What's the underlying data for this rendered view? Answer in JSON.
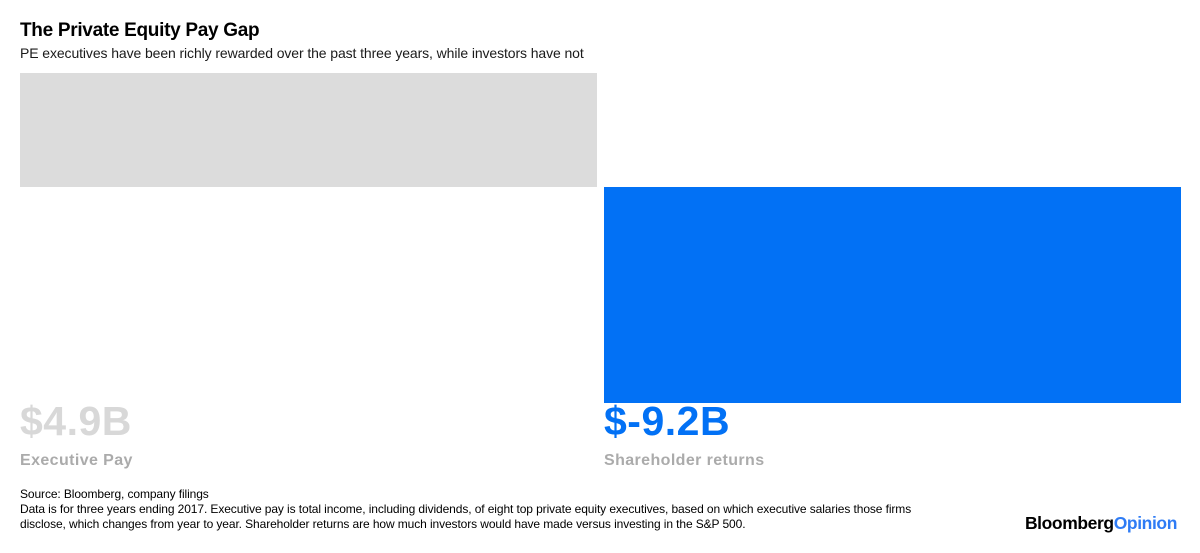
{
  "header": {
    "title": "The Private Equity Pay Gap",
    "subtitle": "PE executives have been richly rewarded over the past three years, while investors have not"
  },
  "chart_data": {
    "type": "bar",
    "variant": "waterfall",
    "title": "The Private Equity Pay Gap",
    "subtitle": "PE executives have been richly rewarded over the past three years, while investors have not",
    "categories": [
      "Executive Pay",
      "Shareholder returns"
    ],
    "values": [
      4.9,
      -9.2
    ],
    "value_labels": [
      "$4.9B",
      "$-9.2B"
    ],
    "unit": "billions of dollars",
    "bar_colors": [
      "#DCDCDC",
      "#0271F5"
    ],
    "axes": "none — values shown as direct data labels",
    "legend": "none",
    "layout": "gray positive block drops from top, blue negative block cascades below it to the right"
  },
  "bars": {
    "executive": {
      "value_label": "$4.9B",
      "category_label": "Executive Pay"
    },
    "shareholder": {
      "value_label": "$-9.2B",
      "category_label": "Shareholder returns"
    }
  },
  "footer": {
    "source_line": "Source: Bloomberg, company filings",
    "note_line1": "Data is for three years ending 2017. Executive pay is total income, including dividends, of eight top private equity executives, based on which executive salaries those firms",
    "note_line2": "disclose, which changes from year to year. Shareholder returns are how much investors would have made versus investing in the S&P 500."
  },
  "logo": {
    "part1": "Bloomberg",
    "part2": "Opinion"
  },
  "colors": {
    "bar_gray": "#DCDCDC",
    "accent_blue": "#0271F5",
    "value_gray": "#D8D8D8",
    "muted_label": "#ABABAB",
    "logo_blue": "#2F7CF5"
  }
}
